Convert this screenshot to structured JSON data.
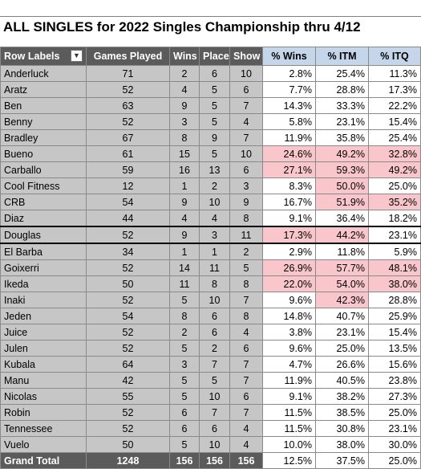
{
  "title": "ALL SINGLES for 2022 Singles Championship thru 4/12",
  "headers": {
    "row_labels": "Row Labels",
    "games_played": "Games Played",
    "wins": "Wins",
    "place": "Place",
    "show": "Show",
    "pct_wins": "% Wins",
    "pct_itm": "% ITM",
    "pct_itq": "% ITQ"
  },
  "rows": [
    {
      "name": "Anderluck",
      "games": "71",
      "wins": "2",
      "place": "6",
      "show": "10",
      "pct_wins": "2.8%",
      "pct_itm": "25.4%",
      "pct_itq": "11.3%"
    },
    {
      "name": "Aratz",
      "games": "52",
      "wins": "4",
      "place": "5",
      "show": "6",
      "pct_wins": "7.7%",
      "pct_itm": "28.8%",
      "pct_itq": "17.3%"
    },
    {
      "name": "Ben",
      "games": "63",
      "wins": "9",
      "place": "5",
      "show": "7",
      "pct_wins": "14.3%",
      "pct_itm": "33.3%",
      "pct_itq": "22.2%"
    },
    {
      "name": "Benny",
      "games": "52",
      "wins": "3",
      "place": "5",
      "show": "4",
      "pct_wins": "5.8%",
      "pct_itm": "23.1%",
      "pct_itq": "15.4%"
    },
    {
      "name": "Bradley",
      "games": "67",
      "wins": "8",
      "place": "9",
      "show": "7",
      "pct_wins": "11.9%",
      "pct_itm": "35.8%",
      "pct_itq": "25.4%"
    },
    {
      "name": "Bueno",
      "games": "61",
      "wins": "15",
      "place": "5",
      "show": "10",
      "pct_wins": "24.6%",
      "pct_itm": "49.2%",
      "pct_itq": "32.8%"
    },
    {
      "name": "Carballo",
      "games": "59",
      "wins": "16",
      "place": "13",
      "show": "6",
      "pct_wins": "27.1%",
      "pct_itm": "59.3%",
      "pct_itq": "49.2%"
    },
    {
      "name": "Cool Fitness",
      "games": "12",
      "wins": "1",
      "place": "2",
      "show": "3",
      "pct_wins": "8.3%",
      "pct_itm": "50.0%",
      "pct_itq": "25.0%"
    },
    {
      "name": "CRB",
      "games": "54",
      "wins": "9",
      "place": "10",
      "show": "9",
      "pct_wins": "16.7%",
      "pct_itm": "51.9%",
      "pct_itq": "35.2%"
    },
    {
      "name": "Diaz",
      "games": "44",
      "wins": "4",
      "place": "4",
      "show": "8",
      "pct_wins": "9.1%",
      "pct_itm": "36.4%",
      "pct_itq": "18.2%"
    },
    {
      "name": "Douglas",
      "games": "52",
      "wins": "9",
      "place": "3",
      "show": "11",
      "pct_wins": "17.3%",
      "pct_itm": "44.2%",
      "pct_itq": "23.1%"
    },
    {
      "name": "El Barba",
      "games": "34",
      "wins": "1",
      "place": "1",
      "show": "2",
      "pct_wins": "2.9%",
      "pct_itm": "11.8%",
      "pct_itq": "5.9%"
    },
    {
      "name": "Goixerri",
      "games": "52",
      "wins": "14",
      "place": "11",
      "show": "5",
      "pct_wins": "26.9%",
      "pct_itm": "57.7%",
      "pct_itq": "48.1%"
    },
    {
      "name": "Ikeda",
      "games": "50",
      "wins": "11",
      "place": "8",
      "show": "8",
      "pct_wins": "22.0%",
      "pct_itm": "54.0%",
      "pct_itq": "38.0%"
    },
    {
      "name": "Inaki",
      "games": "52",
      "wins": "5",
      "place": "10",
      "show": "7",
      "pct_wins": "9.6%",
      "pct_itm": "42.3%",
      "pct_itq": "28.8%"
    },
    {
      "name": "Jeden",
      "games": "54",
      "wins": "8",
      "place": "6",
      "show": "8",
      "pct_wins": "14.8%",
      "pct_itm": "40.7%",
      "pct_itq": "25.9%"
    },
    {
      "name": "Juice",
      "games": "52",
      "wins": "2",
      "place": "6",
      "show": "4",
      "pct_wins": "3.8%",
      "pct_itm": "23.1%",
      "pct_itq": "15.4%"
    },
    {
      "name": "Julen",
      "games": "52",
      "wins": "5",
      "place": "2",
      "show": "6",
      "pct_wins": "9.6%",
      "pct_itm": "25.0%",
      "pct_itq": "13.5%"
    },
    {
      "name": "Kubala",
      "games": "64",
      "wins": "3",
      "place": "7",
      "show": "7",
      "pct_wins": "4.7%",
      "pct_itm": "26.6%",
      "pct_itq": "15.6%"
    },
    {
      "name": "Manu",
      "games": "42",
      "wins": "5",
      "place": "5",
      "show": "7",
      "pct_wins": "11.9%",
      "pct_itm": "40.5%",
      "pct_itq": "23.8%"
    },
    {
      "name": "Nicolas",
      "games": "55",
      "wins": "5",
      "place": "10",
      "show": "6",
      "pct_wins": "9.1%",
      "pct_itm": "38.2%",
      "pct_itq": "27.3%"
    },
    {
      "name": "Robin",
      "games": "52",
      "wins": "6",
      "place": "7",
      "show": "7",
      "pct_wins": "11.5%",
      "pct_itm": "38.5%",
      "pct_itq": "25.0%"
    },
    {
      "name": "Tennessee",
      "games": "52",
      "wins": "6",
      "place": "6",
      "show": "4",
      "pct_wins": "11.5%",
      "pct_itm": "30.8%",
      "pct_itq": "23.1%"
    },
    {
      "name": "Vuelo",
      "games": "50",
      "wins": "5",
      "place": "10",
      "show": "4",
      "pct_wins": "10.0%",
      "pct_itm": "38.0%",
      "pct_itq": "30.0%"
    }
  ],
  "highlights": {
    "Bueno": [
      "pct_wins",
      "pct_itm",
      "pct_itq"
    ],
    "Carballo": [
      "pct_wins",
      "pct_itm",
      "pct_itq"
    ],
    "Cool Fitness": [
      "pct_itm"
    ],
    "CRB": [
      "pct_itm",
      "pct_itq"
    ],
    "Douglas": [
      "pct_wins",
      "pct_itm"
    ],
    "Goixerri": [
      "pct_wins",
      "pct_itm",
      "pct_itq"
    ],
    "Ikeda": [
      "pct_wins",
      "pct_itm",
      "pct_itq"
    ],
    "Inaki": [
      "pct_itm"
    ]
  },
  "thick_border_after": [
    "Diaz",
    "Douglas"
  ],
  "total": {
    "label": "Grand Total",
    "games": "1248",
    "wins": "156",
    "place": "156",
    "show": "156",
    "pct_wins": "12.5%",
    "pct_itm": "37.5%",
    "pct_itq": "25.0%"
  },
  "colors": {
    "header_gray": "#5b5b5b",
    "header_blue": "#c5d5ea",
    "label_gray": "#c6c6c6",
    "highlight_pink": "#f9c6cb"
  }
}
